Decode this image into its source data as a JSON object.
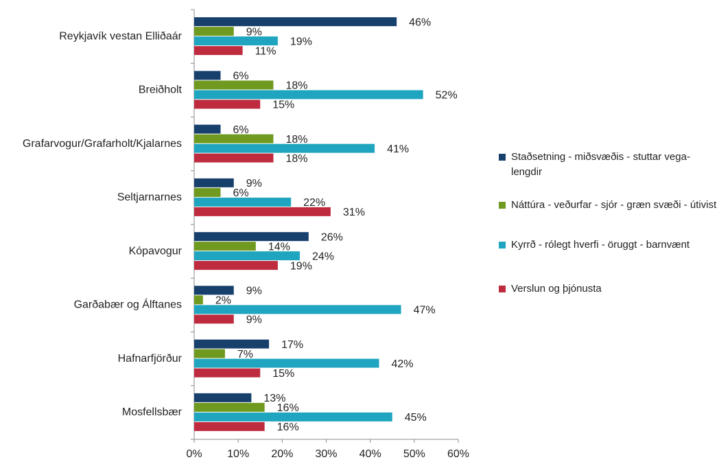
{
  "chart_data": {
    "type": "bar",
    "orientation": "horizontal",
    "categories": [
      "Reykjavík vestan Elliðaár",
      "Breiðholt",
      "Grafarvogur/Grafarholt/Kjalarnes",
      "Seltjarnarnes",
      "Kópavogur",
      "Garðabær og Álftanes",
      "Hafnarfjörður",
      "Mosfellsbær"
    ],
    "series": [
      {
        "name": "Staðsetning - miðsvæðis - stuttar vega-lengdir",
        "color": "#17406d",
        "values": [
          46,
          6,
          6,
          9,
          26,
          9,
          17,
          13
        ],
        "value_labels": [
          "46%",
          "6%",
          "6%",
          "9%",
          "26%",
          "9%",
          "17%",
          "13%"
        ]
      },
      {
        "name": "Náttúra - veðurfar - sjór - græn svæði - útivist",
        "color": "#6f9a1f",
        "values": [
          9,
          18,
          18,
          6,
          14,
          2,
          7,
          16
        ],
        "value_labels": [
          "9%",
          "18%",
          "18%",
          "6%",
          "14%",
          "2%",
          "7%",
          "16%"
        ]
      },
      {
        "name": "Kyrrð - rólegt hverfi - öruggt - barnvænt",
        "color": "#1fa5bf",
        "values": [
          19,
          52,
          41,
          22,
          24,
          47,
          42,
          45
        ],
        "value_labels": [
          "19%",
          "52%",
          "41%",
          "22%",
          "24%",
          "47%",
          "42%",
          "45%"
        ]
      },
      {
        "name": "Verslun og þjónusta",
        "color": "#be2a3e",
        "values": [
          11,
          15,
          18,
          31,
          19,
          9,
          15,
          16
        ],
        "value_labels": [
          "11%",
          "15%",
          "18%",
          "31%",
          "19%",
          "9%",
          "15%",
          "16%"
        ]
      }
    ],
    "xlim": [
      0,
      60
    ],
    "xticks": [
      {
        "value": 0,
        "label": "0%"
      },
      {
        "value": 10,
        "label": "10%"
      },
      {
        "value": 20,
        "label": "20%"
      },
      {
        "value": 30,
        "label": "30%"
      },
      {
        "value": 40,
        "label": "40%"
      },
      {
        "value": 50,
        "label": "50%"
      },
      {
        "value": 60,
        "label": "60%"
      }
    ],
    "legend": "right"
  }
}
